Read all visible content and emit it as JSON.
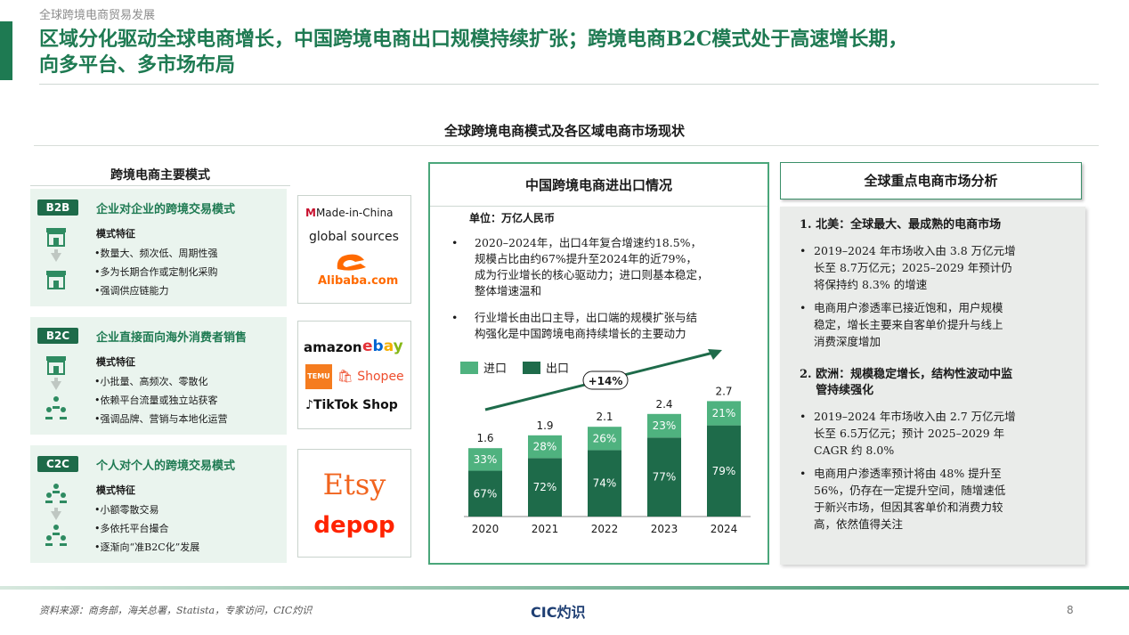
{
  "header": {
    "top_label": "全球跨境电商贸易发展",
    "title_line1": "区域分化驱动全球电商增长，中国跨境电商出口规模持续扩张；跨境电商B2C模式处于高速增长期，",
    "title_line2": "向多平台、多市场布局",
    "subtitle": "全球跨境电商模式及各区域电商市场现状"
  },
  "models": {
    "title": "跨境电商主要模式",
    "items": [
      {
        "tag": "B2B",
        "desc": "企业对企业的跨境交易模式",
        "feature_title": "模式特征",
        "features": [
          "•数量大、频次低、周期性强",
          "•多为长期合作或定制化采购",
          "•强调供应链能力"
        ],
        "logos": [
          "Made-in-China",
          "global sources",
          "Alibaba.com"
        ]
      },
      {
        "tag": "B2C",
        "desc": "企业直接面向海外消费者销售",
        "feature_title": "模式特征",
        "features": [
          "•小批量、高频次、零散化",
          "•依赖平台流量或独立站获客",
          "•强调品牌、营销与本地化运营"
        ],
        "logos": [
          "amazon",
          "ebay",
          "TEMU",
          "Shopee",
          "TikTok Shop"
        ]
      },
      {
        "tag": "C2C",
        "desc": "个人对个人的跨境交易模式",
        "feature_title": "模式特征",
        "features": [
          "•小额零散交易",
          "•多依托平台撮合",
          "•逐渐向“准B2C化”发展"
        ],
        "logos": [
          "Etsy",
          "depop"
        ]
      }
    ]
  },
  "china": {
    "title": "中国跨境电商进出口情况",
    "unit": "单位：万亿人民币",
    "bullets": [
      [
        "2020–2024年，出口4年复合增速约18.5%，",
        "规模占比由约67%提升至2024年的近79%，",
        "成为行业增长的核心驱动力；进口则基本稳定，",
        "整体增速温和"
      ],
      [
        "行业增长由出口主导，出口端的规模扩张与结",
        "构强化是中国跨境电商持续增长的主要动力"
      ]
    ],
    "bullet_symbol": "•"
  },
  "chart_data": {
    "type": "bar",
    "stacked": true,
    "categories": [
      "2020",
      "2021",
      "2022",
      "2023",
      "2024"
    ],
    "totals": [
      1.6,
      1.9,
      2.1,
      2.4,
      2.7
    ],
    "series": [
      {
        "name": "出口",
        "values_pct": [
          67,
          72,
          74,
          77,
          79
        ],
        "labels": [
          "67%",
          "72%",
          "74%",
          "77%",
          "79%"
        ],
        "color": "#1e6b4a"
      },
      {
        "name": "进口",
        "values_pct": [
          33,
          28,
          26,
          23,
          21
        ],
        "labels": [
          "33%",
          "28%",
          "26%",
          "23%",
          "21%"
        ],
        "color": "#4fb27f"
      }
    ],
    "total_labels": [
      "1.6",
      "1.9",
      "2.1",
      "2.4",
      "2.7"
    ],
    "annotation": "+14%",
    "legend": [
      "进口",
      "出口"
    ],
    "legend_placement": "top-left"
  },
  "global": {
    "title": "全球重点电商市场分析",
    "sections": [
      {
        "heading": [
          "1.  北美：全球最大、最成熟的电商市场"
        ],
        "bullets": [
          [
            "2019–2024 年市场收入由 3.8 万亿元增",
            "长至 8.7万亿元；2025–2029 年预计仍",
            "将保持约 8.3% 的增速"
          ],
          [
            "电商用户渗透率已接近饱和，用户规模",
            "稳定，增长主要来自客单价提升与线上",
            "消费深度增加"
          ]
        ]
      },
      {
        "heading": [
          "2.  欧洲：规模稳定增长，结构性波动中监",
          "    管持续强化"
        ],
        "bullets": [
          [
            "2019–2024 年市场收入由 2.7 万亿元增",
            "长至 6.5万亿元；预计 2025–2029 年",
            "CAGR 约 8.0%"
          ],
          [
            "电商用户渗透率预计将由 48% 提升至",
            "56%，仍存在一定提升空间，随增速低",
            "于新兴市场，但因其客单价和消费力较",
            "高，依然值得关注"
          ]
        ]
      }
    ],
    "bullet_symbol": "•"
  },
  "footer": {
    "source": "资料来源：商务部，海关总署，Statista，专家访问，CIC灼识",
    "brand": "CIC灼识",
    "page": "8"
  },
  "colors": {
    "accent": "#1e7a52",
    "dark_green": "#1e6b4a",
    "light_green": "#4fb27f",
    "panel_bg": "#eaf4ee"
  }
}
